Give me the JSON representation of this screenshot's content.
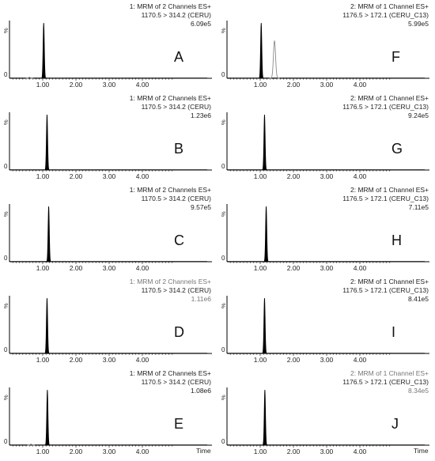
{
  "chart_data": [
    {
      "id": "A",
      "type": "line",
      "header": [
        "1: MRM of 2 Channels ES+",
        "1170.5 > 314.2 (CERU)"
      ],
      "intensity": "6.09e5",
      "y_axis_label": "%",
      "y_zero_label": "0",
      "xlim": [
        0,
        5
      ],
      "x_ticks": [
        "1.00",
        "2.00",
        "3.00",
        "4.00"
      ],
      "x_axis_label": "",
      "peaks": [
        {
          "rt": 1.03,
          "height": 100,
          "width": 0.04,
          "filled": true
        },
        {
          "rt": 0.6,
          "height": 2,
          "width": 0.05,
          "filled": false
        }
      ],
      "grey_header_line": null
    },
    {
      "id": "B",
      "type": "line",
      "header": [
        "1: MRM of 2 Channels ES+",
        "1170.5 > 314.2 (CERU)"
      ],
      "intensity": "1.23e6",
      "y_axis_label": "%",
      "y_zero_label": "0",
      "xlim": [
        0,
        5
      ],
      "x_ticks": [
        "1.00",
        "2.00",
        "3.00",
        "4.00"
      ],
      "x_axis_label": "",
      "peaks": [
        {
          "rt": 1.13,
          "height": 100,
          "width": 0.04,
          "filled": true
        }
      ],
      "grey_header_line": null
    },
    {
      "id": "C",
      "type": "line",
      "header": [
        "1: MRM of 2 Channels ES+",
        "1170.5 > 314.2 (CERU)"
      ],
      "intensity": "9.57e5",
      "y_axis_label": "%",
      "y_zero_label": "0",
      "xlim": [
        0,
        5
      ],
      "x_ticks": [
        "1.00",
        "2.00",
        "3.00",
        "4.00"
      ],
      "x_axis_label": "",
      "peaks": [
        {
          "rt": 1.18,
          "height": 100,
          "width": 0.04,
          "filled": true
        }
      ],
      "grey_header_line": null
    },
    {
      "id": "D",
      "type": "line",
      "header": [
        "1: MRM of 2 Channels ES+",
        "1170.5 > 314.2 (CERU)"
      ],
      "intensity": "1.11e6",
      "y_axis_label": "%",
      "y_zero_label": "0",
      "xlim": [
        0,
        5
      ],
      "x_ticks": [
        "1.00",
        "2.00",
        "3.00",
        "4.00"
      ],
      "x_axis_label": "",
      "peaks": [
        {
          "rt": 1.13,
          "height": 100,
          "width": 0.04,
          "filled": true
        }
      ],
      "grey_header_line": 0
    },
    {
      "id": "E",
      "type": "line",
      "header": [
        "1: MRM of 2 Channels ES+",
        "1170.5 > 314.2 (CERU)"
      ],
      "intensity": "1.08e6",
      "y_axis_label": "%",
      "y_zero_label": "0",
      "xlim": [
        0,
        5
      ],
      "x_ticks": [
        "1.00",
        "2.00",
        "3.00",
        "4.00"
      ],
      "x_axis_label": "Time",
      "peaks": [
        {
          "rt": 1.14,
          "height": 100,
          "width": 0.04,
          "filled": true
        },
        {
          "rt": 0.65,
          "height": 2,
          "width": 0.05,
          "filled": false
        }
      ],
      "grey_header_line": null
    },
    {
      "id": "F",
      "type": "line",
      "header": [
        "2: MRM of 1 Channel ES+",
        "1176.5 > 172.1 (CERU_C13)"
      ],
      "intensity": "5.99e5",
      "y_axis_label": "%",
      "y_zero_label": "0",
      "xlim": [
        0,
        5
      ],
      "x_ticks": [
        "1.00",
        "2.00",
        "3.00",
        "4.00"
      ],
      "x_axis_label": "",
      "peaks": [
        {
          "rt": 1.03,
          "height": 100,
          "width": 0.04,
          "filled": true
        },
        {
          "rt": 1.43,
          "height": 68,
          "width": 0.07,
          "filled": false
        }
      ],
      "grey_header_line": null
    },
    {
      "id": "G",
      "type": "line",
      "header": [
        "2: MRM of 1 Channel ES+",
        "1176.5 > 172.1 (CERU_C13)"
      ],
      "intensity": "9.24e5",
      "y_axis_label": "%",
      "y_zero_label": "0",
      "xlim": [
        0,
        5
      ],
      "x_ticks": [
        "1.00",
        "2.00",
        "3.00",
        "4.00"
      ],
      "x_axis_label": "",
      "peaks": [
        {
          "rt": 1.13,
          "height": 100,
          "width": 0.04,
          "filled": true
        }
      ],
      "grey_header_line": null
    },
    {
      "id": "H",
      "type": "line",
      "header": [
        "2: MRM of 1 Channel ES+",
        "1176.5 > 172.1 (CERU_C13)"
      ],
      "intensity": "7.11e5",
      "y_axis_label": "%",
      "y_zero_label": "0",
      "xlim": [
        0,
        5
      ],
      "x_ticks": [
        "1.00",
        "2.00",
        "3.00",
        "4.00"
      ],
      "x_axis_label": "",
      "peaks": [
        {
          "rt": 1.18,
          "height": 100,
          "width": 0.04,
          "filled": true
        }
      ],
      "grey_header_line": null
    },
    {
      "id": "I",
      "type": "line",
      "header": [
        "2: MRM of 1 Channel ES+",
        "1176.5 > 172.1 (CERU_C13)"
      ],
      "intensity": "8.41e5",
      "y_axis_label": "%",
      "y_zero_label": "0",
      "xlim": [
        0,
        5
      ],
      "x_ticks": [
        "1.00",
        "2.00",
        "3.00",
        "4.00"
      ],
      "x_axis_label": "",
      "peaks": [
        {
          "rt": 1.13,
          "height": 100,
          "width": 0.04,
          "filled": true
        }
      ],
      "grey_header_line": null
    },
    {
      "id": "J",
      "type": "line",
      "header": [
        "2: MRM of 1 Channel ES+",
        "1176.5 > 172.1 (CERU_C13)"
      ],
      "intensity": "8.34e5",
      "y_axis_label": "%",
      "y_zero_label": "0",
      "xlim": [
        0,
        5
      ],
      "x_ticks": [
        "1.00",
        "2.00",
        "3.00",
        "4.00"
      ],
      "x_axis_label": "Time",
      "peaks": [
        {
          "rt": 1.14,
          "height": 100,
          "width": 0.04,
          "filled": true
        }
      ],
      "grey_header_line": 0
    }
  ],
  "colors": {
    "trace": "#000000",
    "grey_trace": "#8a8a8a",
    "text": "#222222",
    "grey_text": "#777777"
  }
}
